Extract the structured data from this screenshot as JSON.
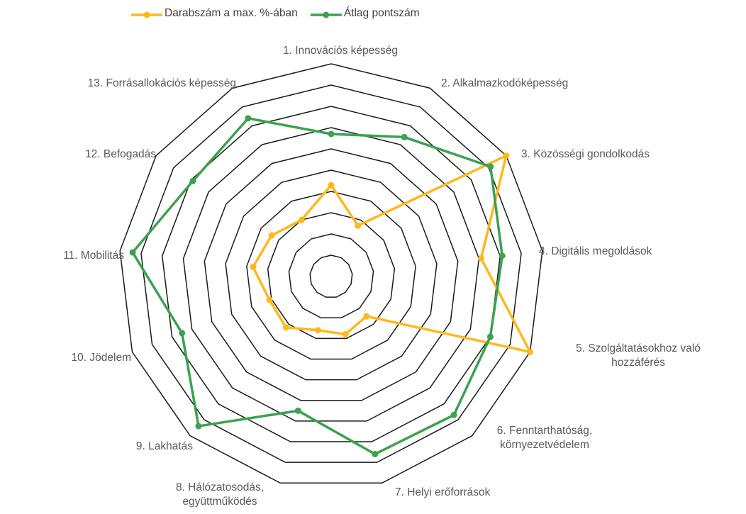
{
  "chart_data": {
    "type": "radar",
    "categories": [
      "1. Innovációs képesség",
      "2. Alkalmazkodóképesség",
      "3. Közösségi gondolkodás",
      "4. Digitális megoldások",
      "5. Szolgáltatásokhoz való hozzáférés",
      "6. Fenntarthatóság, környezetvédelem",
      "7. Helyi erőforrások",
      "8. Hálózatosodás, együttműködés",
      "9. Lakhatás",
      "10. Jödelem",
      "11. Mobilitás",
      "12. Befogadás",
      "13. Forrásallokációs képesség"
    ],
    "series": [
      {
        "name": "Darabszám a max. %-ában",
        "color": "#FFB81C",
        "values": [
          43,
          27,
          100,
          71,
          100,
          25,
          28,
          26,
          32,
          31,
          37,
          34,
          30
        ]
      },
      {
        "name": "Átlag pontszám",
        "color": "#3BA24F",
        "values": [
          67,
          74,
          91,
          81,
          80,
          87,
          86,
          65,
          94,
          75,
          94,
          79,
          84
        ]
      }
    ],
    "ylim": [
      0,
      100
    ],
    "yticks": [
      0,
      10,
      20,
      30,
      40,
      50,
      60,
      70,
      80,
      90,
      100
    ],
    "grid": true,
    "legend": "top"
  }
}
